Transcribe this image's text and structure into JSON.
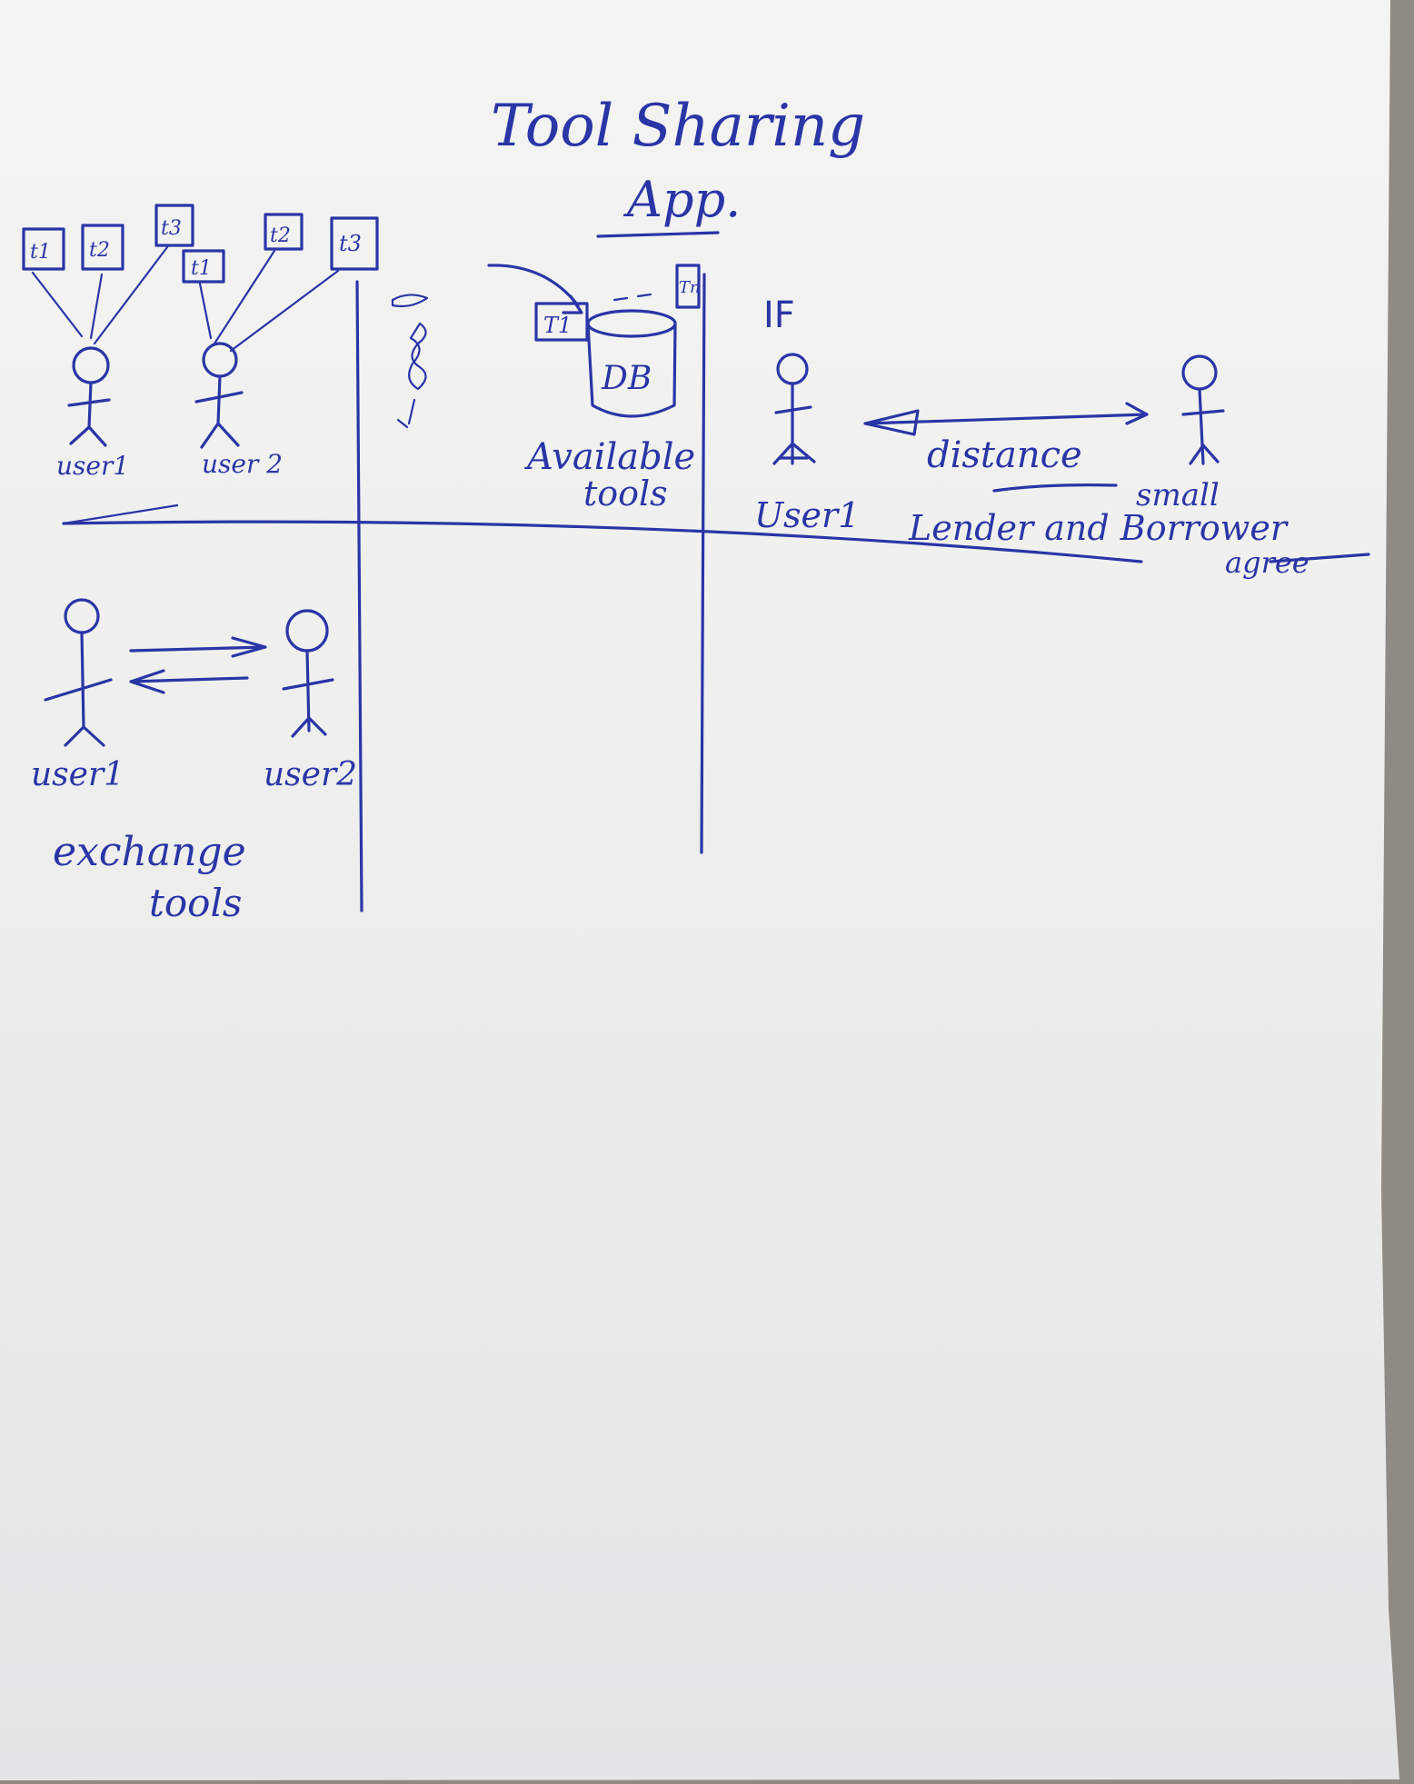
{
  "title_line1": "Tool Sharing",
  "title_line2": "App.",
  "tool_labels": {
    "t1": "t1",
    "t2": "t2",
    "t3": "t3",
    "T1": "T1",
    "Tn": "Tn"
  },
  "users": {
    "user1": "user1",
    "user2": "user 2",
    "user1_exchange": "user1",
    "user2_exchange": "user2",
    "user1_if": "User1"
  },
  "db_label": "DB",
  "available_tools": [
    "Available",
    "tools"
  ],
  "exchange_tools": [
    "exchange",
    "tools"
  ],
  "if_label": "IF",
  "distance_label": "distance",
  "small_label": "small",
  "lender_borrower": "Lender and Borrower",
  "agree_label": "agree",
  "colors": {
    "ink": "#2a35a6",
    "paper": "#efefef",
    "background": "#8f8a84"
  }
}
